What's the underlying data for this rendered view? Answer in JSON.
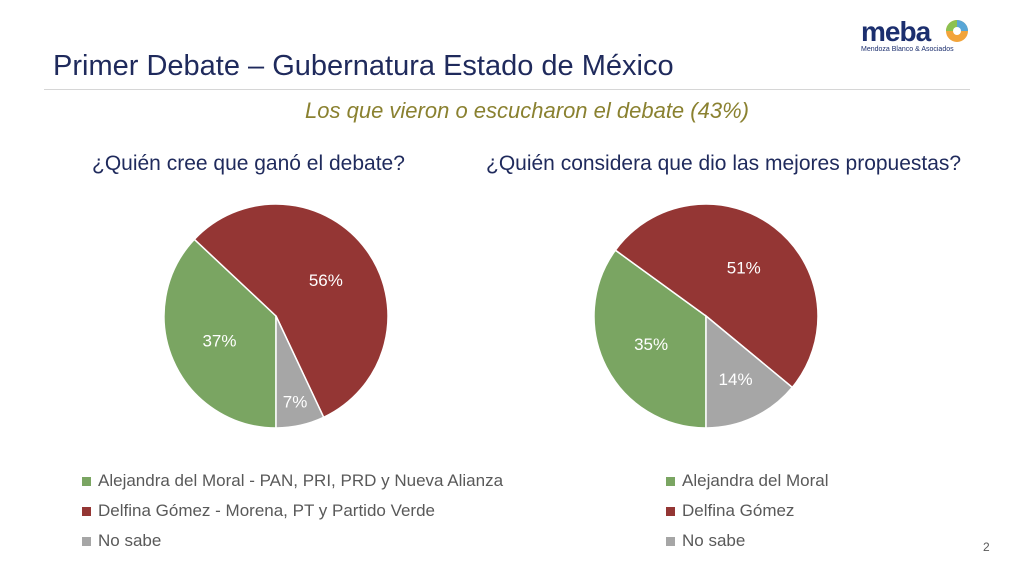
{
  "slide": {
    "title": "Primer Debate – Gubernatura Estado de México",
    "subtitle": "Los que vieron o escucharon el debate (43%)",
    "page_number": "2",
    "logo": {
      "name": "meba",
      "tagline": "Mendoza Blanco & Asociados"
    }
  },
  "chart_data": [
    {
      "type": "pie",
      "title": "¿Quién cree que ganó el debate?",
      "labels": [
        "Alejandra del Moral - PAN, PRI, PRD y Nueva Alianza",
        "Delfina Gómez - Morena, PT y Partido Verde",
        "No sabe"
      ],
      "values": [
        37,
        56,
        7
      ],
      "value_labels": [
        "37%",
        "56%",
        "7%"
      ],
      "colors": [
        "#7aa562",
        "#943634",
        "#a6a6a6"
      ],
      "legend": "bottom"
    },
    {
      "type": "pie",
      "title": "¿Quién considera que dio las mejores propuestas?",
      "labels": [
        "Alejandra del Moral",
        "Delfina Gómez",
        "No sabe"
      ],
      "values": [
        35,
        51,
        14
      ],
      "value_labels": [
        "35%",
        "51%",
        "14%"
      ],
      "colors": [
        "#7aa562",
        "#943634",
        "#a6a6a6"
      ],
      "legend": "bottom"
    }
  ]
}
